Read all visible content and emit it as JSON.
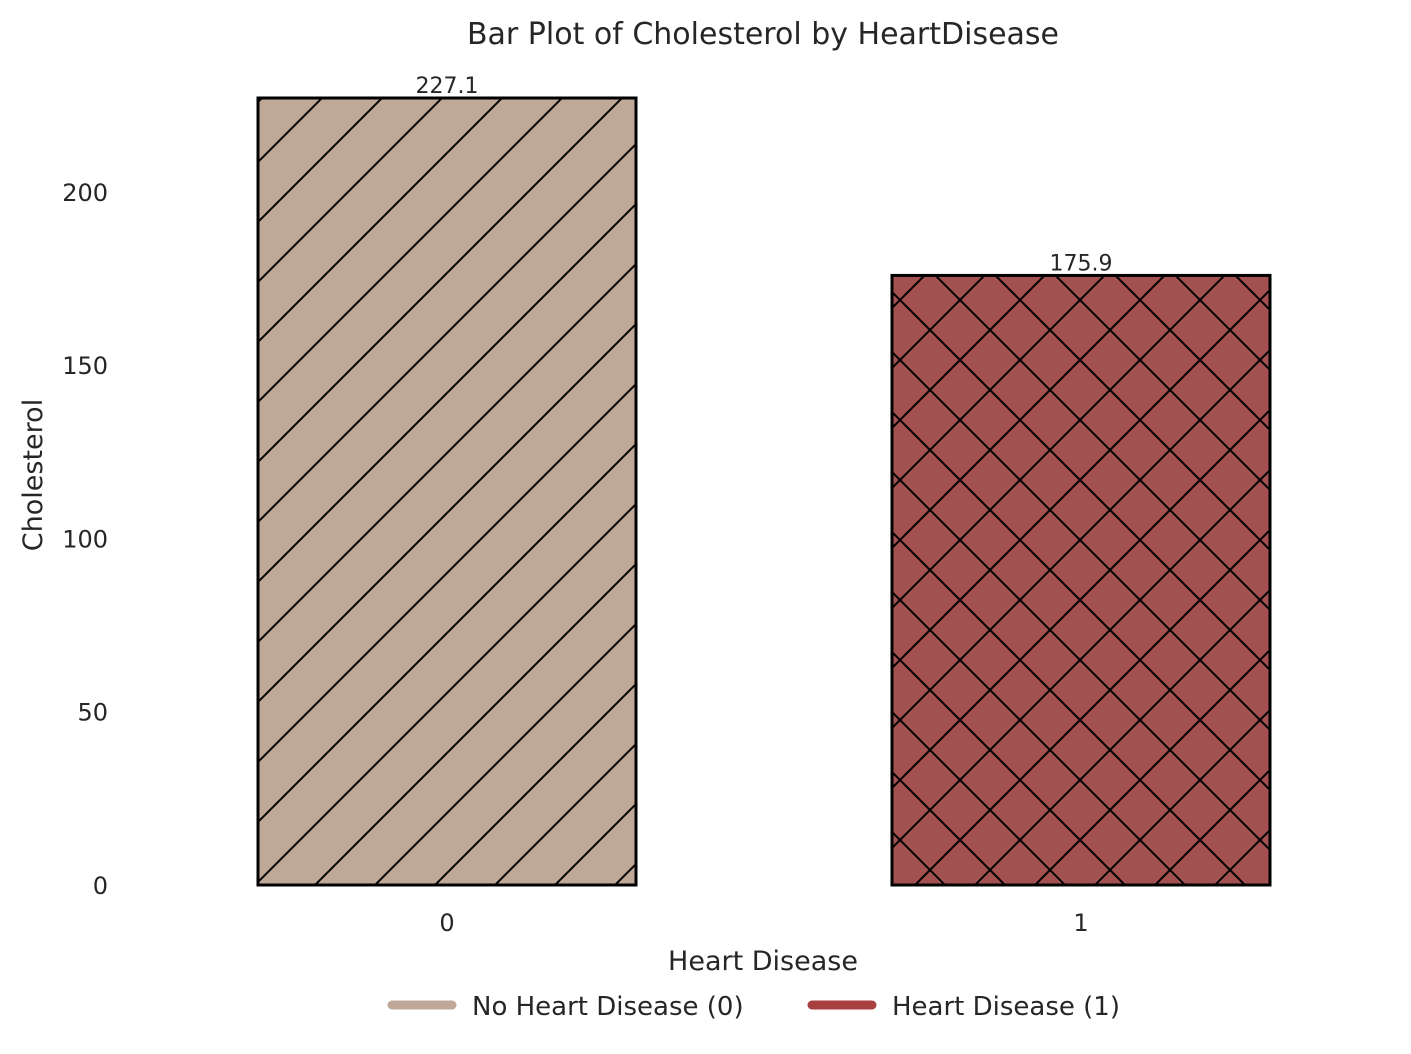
{
  "chart_data": {
    "type": "bar",
    "title": "Bar Plot of Cholesterol by HeartDisease",
    "xlabel": "Heart Disease",
    "ylabel": "Cholesterol",
    "categories": [
      "0",
      "1"
    ],
    "values": [
      227.1,
      175.9
    ],
    "data_labels": [
      "227.1",
      "175.9"
    ],
    "colors": [
      "#c0a898",
      "#a35050"
    ],
    "hatches": [
      "diagonal",
      "crosshatch"
    ],
    "ylim": [
      0,
      227.1
    ],
    "yticks": [
      0,
      50,
      100,
      150,
      200
    ],
    "ytick_labels": [
      "0",
      "50",
      "100",
      "150",
      "200"
    ],
    "grid": false,
    "legend": {
      "placement": "bottom-center",
      "entries": [
        {
          "label": "No Heart Disease (0)",
          "color": "#c0a898"
        },
        {
          "label": "Heart Disease (1)",
          "color": "#a84040"
        }
      ]
    }
  }
}
